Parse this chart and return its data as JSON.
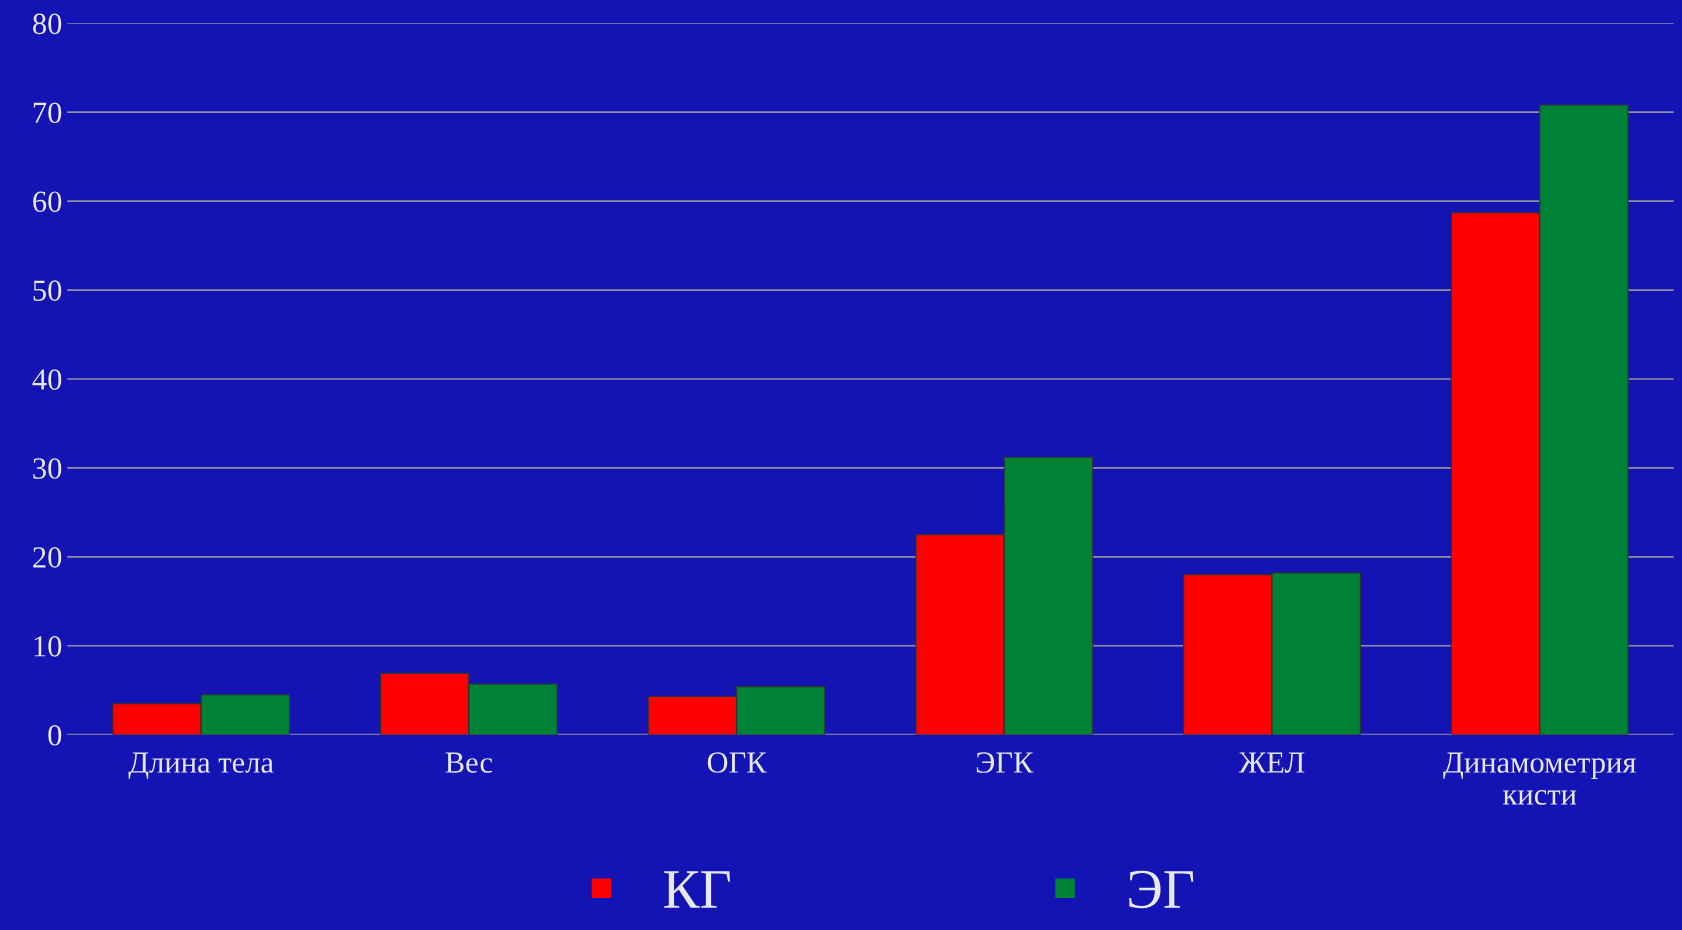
{
  "chart_data": {
    "type": "bar",
    "categories": [
      "Длина тела",
      "Вес",
      "ОГК",
      "ЭГК",
      "ЖЕЛ",
      "Динамометрия\nкисти"
    ],
    "series": [
      {
        "name": "КГ",
        "color": "#ff0000",
        "values": [
          3.5,
          6.9,
          4.3,
          22.5,
          18.0,
          58.7
        ]
      },
      {
        "name": "ЭГ",
        "color": "#008236",
        "values": [
          4.5,
          5.7,
          5.4,
          31.2,
          18.2,
          70.8
        ]
      }
    ],
    "ylim": [
      0,
      80
    ],
    "yticks": [
      0,
      10,
      20,
      30,
      40,
      50,
      60,
      70,
      80
    ],
    "grid": "y",
    "legend": "bottom"
  }
}
